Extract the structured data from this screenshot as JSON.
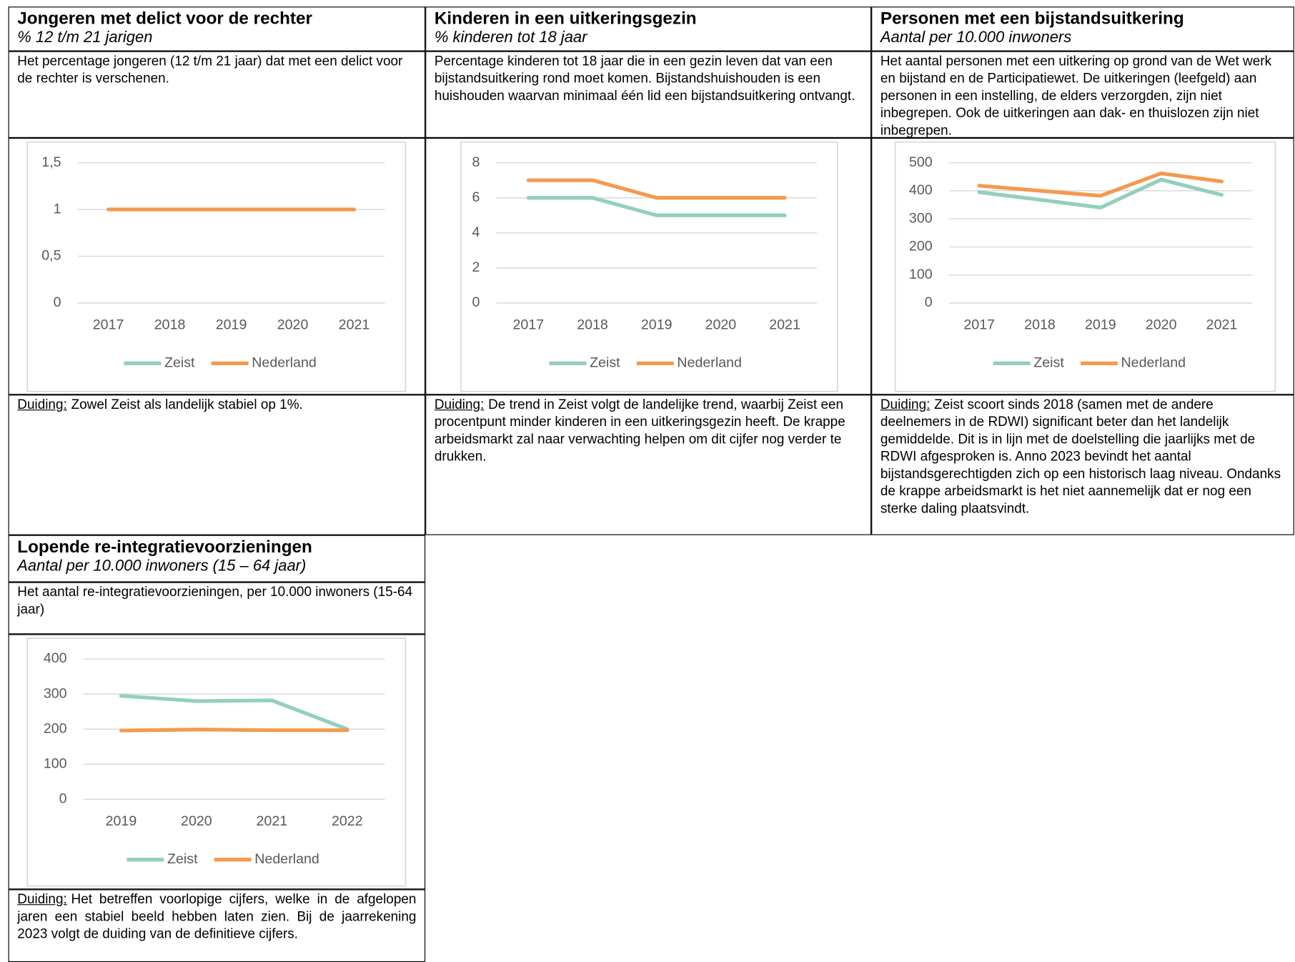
{
  "panels": [
    {
      "title": "Jongeren met delict voor de rechter",
      "subtitle": "% 12 t/m 21 jarigen",
      "description": "Het percentage jongeren (12 t/m 21 jaar) dat met een delict voor de rechter is verschenen.",
      "duiding_label": "Duiding:",
      "duiding": "Zowel Zeist als landelijk stabiel op 1%."
    },
    {
      "title": "Kinderen in een uitkeringsgezin",
      "subtitle": "% kinderen tot 18 jaar",
      "description": "Percentage kinderen tot 18 jaar die in een gezin leven dat van een bijstandsuitkering rond moet komen. Bijstandshuishouden is een huishouden waarvan minimaal één lid een bijstandsuitkering ontvangt.",
      "duiding_label": "Duiding:",
      "duiding": "De trend in Zeist volgt de landelijke trend, waarbij Zeist een procentpunt minder kinderen in een uitkeringsgezin heeft. De krappe arbeidsmarkt zal naar verwachting helpen om dit cijfer nog verder te drukken."
    },
    {
      "title": "Personen met een bijstandsuitkering",
      "subtitle": "Aantal per 10.000 inwoners",
      "description": "Het aantal personen met een uitkering op grond van de Wet werk en bijstand en de Participatiewet. De uitkeringen (leefgeld) aan personen in een instelling, de elders verzorgden, zijn niet inbegrepen. Ook de uitkeringen aan dak- en thuislozen zijn niet inbegrepen.",
      "duiding_label": "Duiding:",
      "duiding": "Zeist scoort sinds 2018 (samen met de andere deelnemers in de RDWI) significant beter dan het landelijk gemiddelde. Dit is in lijn met de doelstelling die jaarlijks met de RDWI afgesproken is. Anno 2023 bevindt het aantal bijstandsgerechtigden zich op een historisch laag niveau. Ondanks de krappe arbeidsmarkt is het niet aannemelijk dat er nog een sterke daling plaatsvindt."
    },
    {
      "title": "Lopende re-integratievoorzieningen",
      "subtitle": "Aantal per 10.000 inwoners (15 – 64 jaar)",
      "description": "Het aantal re-integratievoorzieningen, per 10.000 inwoners (15-64 jaar)",
      "duiding_label": "Duiding:",
      "duiding": "Het betreffen voorlopige cijfers, welke in de afgelopen jaren een stabiel beeld hebben laten zien. Bij de jaarrekening 2023 volgt de duiding van de definitieve cijfers."
    }
  ],
  "chart_data": [
    {
      "type": "line",
      "categories": [
        "2017",
        "2018",
        "2019",
        "2020",
        "2021"
      ],
      "series": [
        {
          "name": "Zeist",
          "color": "#93cfbd",
          "values": [
            1,
            1,
            1,
            1,
            1
          ]
        },
        {
          "name": "Nederland",
          "color": "#f39a4f",
          "values": [
            1,
            1,
            1,
            1,
            1
          ]
        }
      ],
      "ylim": [
        0,
        1.5
      ],
      "yticks": [
        0,
        {
          "value": 0.5,
          "label": "0,5"
        },
        1,
        {
          "value": 1.5,
          "label": "1,5"
        }
      ],
      "grid": true,
      "legend": "bottom"
    },
    {
      "type": "line",
      "categories": [
        "2017",
        "2018",
        "2019",
        "2020",
        "2021"
      ],
      "series": [
        {
          "name": "Zeist",
          "color": "#93cfbd",
          "values": [
            6,
            6,
            5,
            5,
            5
          ]
        },
        {
          "name": "Nederland",
          "color": "#f39a4f",
          "values": [
            7,
            7,
            6,
            6,
            6
          ]
        }
      ],
      "ylim": [
        0,
        8
      ],
      "yticks": [
        0,
        2,
        4,
        6,
        8
      ],
      "grid": true,
      "legend": "bottom"
    },
    {
      "type": "line",
      "categories": [
        "2017",
        "2018",
        "2019",
        "2020",
        "2021"
      ],
      "series": [
        {
          "name": "Zeist",
          "color": "#93cfbd",
          "values": [
            395,
            368,
            340,
            440,
            385
          ]
        },
        {
          "name": "Nederland",
          "color": "#f39a4f",
          "values": [
            418,
            400,
            382,
            462,
            433
          ]
        }
      ],
      "ylim": [
        0,
        500
      ],
      "yticks": [
        0,
        100,
        200,
        300,
        400,
        500
      ],
      "grid": true,
      "legend": "bottom"
    },
    {
      "type": "line",
      "categories": [
        "2019",
        "2020",
        "2021",
        "2022"
      ],
      "series": [
        {
          "name": "Zeist",
          "color": "#93cfbd",
          "values": [
            295,
            280,
            282,
            200
          ]
        },
        {
          "name": "Nederland",
          "color": "#f39a4f",
          "values": [
            196,
            199,
            197,
            197
          ]
        }
      ],
      "ylim": [
        0,
        400
      ],
      "yticks": [
        0,
        100,
        200,
        300,
        400
      ],
      "grid": true,
      "legend": "bottom"
    }
  ]
}
